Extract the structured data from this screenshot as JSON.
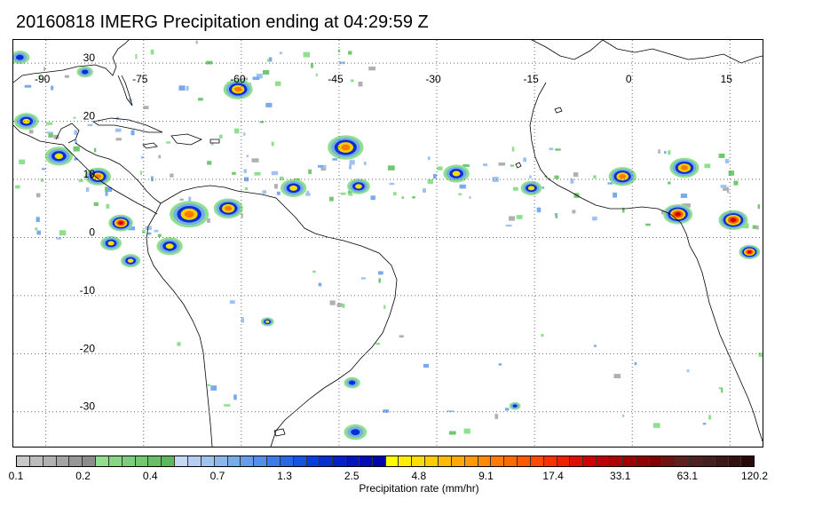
{
  "title": "20160818 IMERG Precipitation ending at 04:29:59 Z",
  "map": {
    "projection": "equirectangular",
    "lon_range": [
      -95,
      20
    ],
    "lat_range": [
      -36,
      34
    ],
    "lon_gridlines": [
      -90,
      -75,
      -60,
      -45,
      -30,
      -15,
      0,
      15
    ],
    "lat_gridlines": [
      30,
      20,
      10,
      0,
      -10,
      -20,
      -30
    ],
    "lon_labels": [
      "-90",
      "-75",
      "-60",
      "-45",
      "-30",
      "-15",
      "0",
      "15"
    ],
    "lat_labels": [
      "30",
      "20",
      "10",
      "0",
      "-10",
      "-20",
      "-30"
    ],
    "grid": "dotted",
    "coastline_color": "#000000"
  },
  "colorbar": {
    "label": "Precipitation rate (mm/hr)",
    "tick_labels": [
      "0.1",
      "0.2",
      "0.4",
      "0.7",
      "1.3",
      "2.5",
      "4.8",
      "9.1",
      "17.4",
      "33.1",
      "63.1",
      "120.2"
    ],
    "colors": [
      "#c8c8c8",
      "#bcbcbc",
      "#b0b0b0",
      "#a4a4a4",
      "#989898",
      "#8c8c8c",
      "#8ee08e",
      "#84d884",
      "#7ad07a",
      "#70c870",
      "#66c066",
      "#5cb85c",
      "#c8d8f4",
      "#b4cdf2",
      "#a0c2f0",
      "#8cb6ee",
      "#78aaec",
      "#649eea",
      "#5090e8",
      "#3c7ce6",
      "#2868e4",
      "#1454e2",
      "#0040e0",
      "#0030d0",
      "#0020c8",
      "#0014c0",
      "#000cb8",
      "#0004b0",
      "#ffff00",
      "#ffee00",
      "#ffdd00",
      "#ffcc00",
      "#ffbb00",
      "#ffaa00",
      "#ff9a00",
      "#ff8a00",
      "#ff7a00",
      "#ff6a00",
      "#ff5a00",
      "#ff4a00",
      "#ff3000",
      "#f02000",
      "#e01000",
      "#d00000",
      "#c00000",
      "#b00000",
      "#a00000",
      "#900000",
      "#800000",
      "#701010",
      "#602020",
      "#502020",
      "#442020",
      "#3c1818",
      "#341010",
      "#2c0808"
    ]
  },
  "precip_cells": [
    {
      "lon": -60.5,
      "lat": 25.5,
      "r": 1.8,
      "max": "orange"
    },
    {
      "lon": -44.0,
      "lat": 15.5,
      "r": 2.2,
      "max": "orange"
    },
    {
      "lon": -78.5,
      "lat": 2.5,
      "r": 1.5,
      "max": "red"
    },
    {
      "lon": -68.0,
      "lat": 4.0,
      "r": 2.4,
      "max": "orange"
    },
    {
      "lon": -62.0,
      "lat": 5.0,
      "r": 1.8,
      "max": "orange"
    },
    {
      "lon": -82.0,
      "lat": 10.5,
      "r": 1.6,
      "max": "orange"
    },
    {
      "lon": -88.0,
      "lat": 14.0,
      "r": 1.7,
      "max": "yellow"
    },
    {
      "lon": -93.0,
      "lat": 20.0,
      "r": 1.5,
      "max": "yellow"
    },
    {
      "lon": -80.0,
      "lat": -1.0,
      "r": 1.3,
      "max": "yellow"
    },
    {
      "lon": -71.0,
      "lat": -1.5,
      "r": 1.6,
      "max": "yellow"
    },
    {
      "lon": -77.0,
      "lat": -4.0,
      "r": 1.2,
      "max": "yellow"
    },
    {
      "lon": -52.0,
      "lat": 8.5,
      "r": 1.6,
      "max": "yellow"
    },
    {
      "lon": -42.0,
      "lat": 8.8,
      "r": 1.4,
      "max": "yellow"
    },
    {
      "lon": -27.0,
      "lat": 11.0,
      "r": 1.6,
      "max": "yellow"
    },
    {
      "lon": -15.5,
      "lat": 8.5,
      "r": 1.3,
      "max": "yellow"
    },
    {
      "lon": -1.5,
      "lat": 10.5,
      "r": 1.7,
      "max": "orange"
    },
    {
      "lon": 8.0,
      "lat": 12.0,
      "r": 1.8,
      "max": "orange"
    },
    {
      "lon": 7.0,
      "lat": 4.0,
      "r": 1.8,
      "max": "red"
    },
    {
      "lon": 15.5,
      "lat": 3.0,
      "r": 1.8,
      "max": "red"
    },
    {
      "lon": 18.0,
      "lat": -2.5,
      "r": 1.3,
      "max": "red"
    },
    {
      "lon": -56.0,
      "lat": -14.5,
      "r": 0.8,
      "max": "yellow"
    },
    {
      "lon": -43.0,
      "lat": -25.0,
      "r": 1.0,
      "max": "blue"
    },
    {
      "lon": -42.5,
      "lat": -33.5,
      "r": 1.4,
      "max": "blue"
    },
    {
      "lon": -18.0,
      "lat": -29.0,
      "r": 0.7,
      "max": "blue"
    },
    {
      "lon": -84.0,
      "lat": 28.5,
      "r": 1.0,
      "max": "blue"
    },
    {
      "lon": -94.0,
      "lat": 31.0,
      "r": 1.2,
      "max": "blue"
    }
  ]
}
